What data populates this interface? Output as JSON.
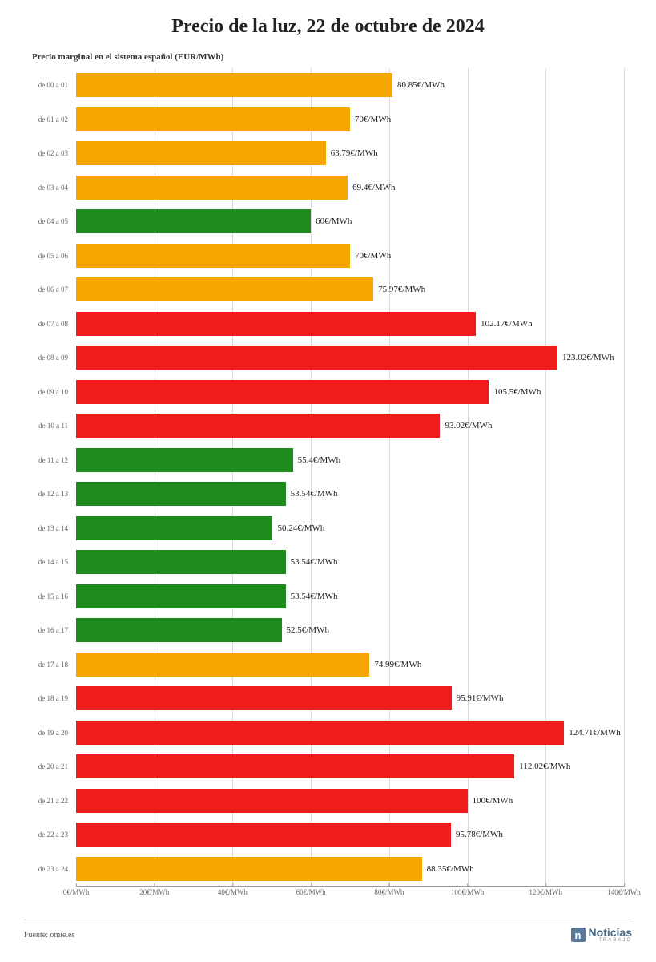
{
  "chart": {
    "type": "bar-horizontal",
    "title": "Precio de la luz, 22 de octubre de 2024",
    "subtitle": "Precio marginal en el sistema español (EUR/MWh)",
    "xmax": 140,
    "xtick_step": 20,
    "xtick_unit": "€/MWh",
    "bar_label_unit": "€/MWh",
    "colors": {
      "green": "#1f8b1f",
      "orange": "#f6a600",
      "red": "#ee1c1c",
      "grid": "#d9d9d9",
      "background": "#ffffff"
    },
    "title_fontsize": 24,
    "subtitle_fontsize": 11,
    "axis_label_fontsize": 9,
    "bar_label_fontsize": 11,
    "rows": [
      {
        "label": "de 00 a 01",
        "value": 80.85,
        "display": "80.85",
        "color": "orange"
      },
      {
        "label": "de 01 a 02",
        "value": 70,
        "display": "70",
        "color": "orange"
      },
      {
        "label": "de 02 a 03",
        "value": 63.79,
        "display": "63.79",
        "color": "orange"
      },
      {
        "label": "de 03 a 04",
        "value": 69.4,
        "display": "69.4",
        "color": "orange"
      },
      {
        "label": "de 04 a 05",
        "value": 60,
        "display": "60",
        "color": "green"
      },
      {
        "label": "de 05 a 06",
        "value": 70,
        "display": "70",
        "color": "orange"
      },
      {
        "label": "de 06 a 07",
        "value": 75.97,
        "display": "75.97",
        "color": "orange"
      },
      {
        "label": "de 07 a 08",
        "value": 102.17,
        "display": "102.17",
        "color": "red"
      },
      {
        "label": "de 08 a 09",
        "value": 123.02,
        "display": "123.02",
        "color": "red"
      },
      {
        "label": "de 09 a 10",
        "value": 105.5,
        "display": "105.5",
        "color": "red"
      },
      {
        "label": "de 10 a 11",
        "value": 93.02,
        "display": "93.02",
        "color": "red"
      },
      {
        "label": "de 11 a 12",
        "value": 55.4,
        "display": "55.4",
        "color": "green"
      },
      {
        "label": "de 12 a 13",
        "value": 53.54,
        "display": "53.54",
        "color": "green"
      },
      {
        "label": "de 13 a 14",
        "value": 50.24,
        "display": "50.24",
        "color": "green"
      },
      {
        "label": "de 14 a 15",
        "value": 53.54,
        "display": "53.54",
        "color": "green"
      },
      {
        "label": "de 15 a 16",
        "value": 53.54,
        "display": "53.54",
        "color": "green"
      },
      {
        "label": "de 16 a 17",
        "value": 52.5,
        "display": "52.5",
        "color": "green"
      },
      {
        "label": "de 17 a 18",
        "value": 74.99,
        "display": "74.99",
        "color": "orange"
      },
      {
        "label": "de 18 a 19",
        "value": 95.91,
        "display": "95.91",
        "color": "red"
      },
      {
        "label": "de 19 a 20",
        "value": 124.71,
        "display": "124.71",
        "color": "red"
      },
      {
        "label": "de 20 a 21",
        "value": 112.02,
        "display": "112.02",
        "color": "red"
      },
      {
        "label": "de 21 a 22",
        "value": 100,
        "display": "100",
        "color": "red"
      },
      {
        "label": "de 22 a 23",
        "value": 95.78,
        "display": "95.78",
        "color": "red"
      },
      {
        "label": "de 23 a 24",
        "value": 88.35,
        "display": "88.35",
        "color": "orange"
      }
    ]
  },
  "footer": {
    "source": "Fuente: omie.es",
    "logo_main": "Noticias",
    "logo_sub": "TRABAJO",
    "logo_letter": "n"
  }
}
